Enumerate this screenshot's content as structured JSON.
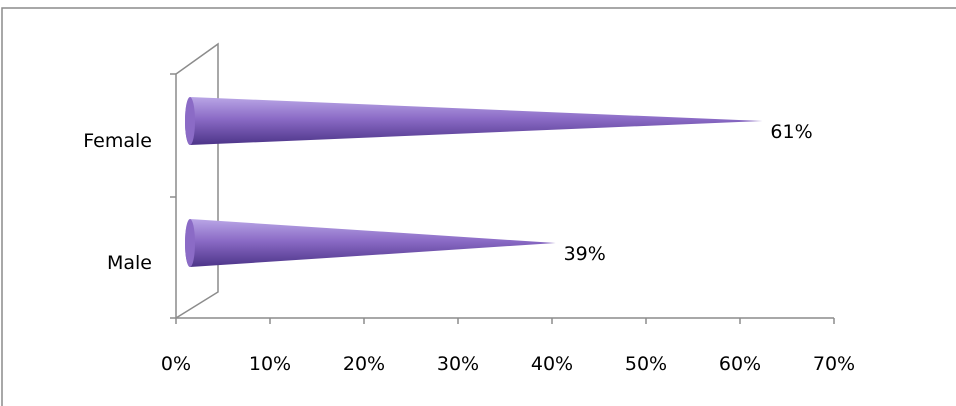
{
  "chart_data": {
    "type": "bar",
    "orientation": "horizontal",
    "style": "3d-cone",
    "categories": [
      "Female",
      "Male"
    ],
    "values": [
      61,
      39
    ],
    "data_labels": [
      "61%",
      "39%"
    ],
    "xlim": [
      0,
      70
    ],
    "x_ticks": [
      0,
      10,
      20,
      30,
      40,
      50,
      60,
      70
    ],
    "x_tick_labels": [
      "0%",
      "10%",
      "20%",
      "30%",
      "40%",
      "50%",
      "60%",
      "70%"
    ],
    "grid": false,
    "legend": "none",
    "colors": {
      "bar_light": "#b9a6e6",
      "bar_mid": "#8b6bc6",
      "bar_dark": "#4c3488"
    }
  }
}
